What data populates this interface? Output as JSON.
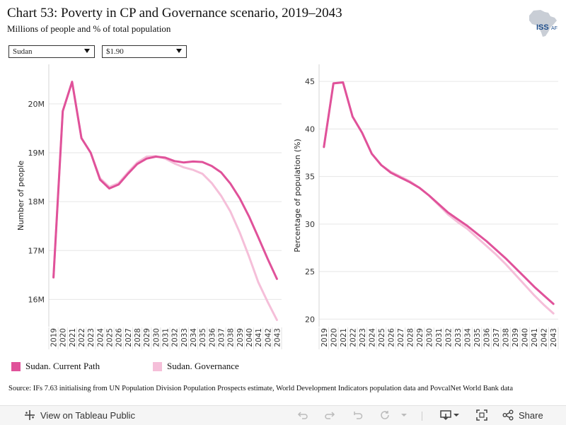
{
  "header": {
    "title": "Chart 53: Poverty in CP and Governance scenario, 2019–2043",
    "subtitle": "Millions of people and % of total population",
    "logo_text": "ISS",
    "logo_suffix": "AF"
  },
  "filters": {
    "country": "Sudan",
    "poverty_line": "$1.90"
  },
  "colors": {
    "current_path": "#e0529a",
    "governance": "#f5bfd9",
    "grid": "#e6e6e6"
  },
  "legend": [
    {
      "label": "Sudan. Current Path",
      "color": "#e0529a"
    },
    {
      "label": "Sudan. Governance",
      "color": "#f5bfd9"
    }
  ],
  "source": "Source: IFs 7.63 initialising from UN Population Division Population Prospects estimate, World Development Indicators population data and PovcalNet World Bank data",
  "toolbar": {
    "view_label": "View on Tableau Public",
    "share_label": "Share"
  },
  "chart_data": [
    {
      "type": "line",
      "title": "",
      "xlabel": "",
      "ylabel": "Number of people",
      "x": [
        2019,
        2020,
        2021,
        2022,
        2023,
        2024,
        2025,
        2026,
        2027,
        2028,
        2029,
        2030,
        2031,
        2032,
        2033,
        2034,
        2035,
        2036,
        2037,
        2038,
        2039,
        2040,
        2041,
        2042,
        2043
      ],
      "yticks": [
        16,
        17,
        18,
        19,
        20
      ],
      "ytick_labels": [
        "16M",
        "17M",
        "18M",
        "19M",
        "20M"
      ],
      "ylim": [
        15.5,
        20.75
      ],
      "grid": true,
      "series": [
        {
          "name": "Sudan. Current Path",
          "values": [
            16.45,
            19.85,
            20.45,
            19.3,
            19.0,
            18.45,
            18.27,
            18.35,
            18.57,
            18.77,
            18.88,
            18.92,
            18.9,
            18.83,
            18.8,
            18.82,
            18.81,
            18.73,
            18.6,
            18.37,
            18.07,
            17.7,
            17.27,
            16.83,
            16.42
          ]
        },
        {
          "name": "Sudan. Governance",
          "values": [
            16.45,
            19.85,
            20.45,
            19.3,
            19.0,
            18.48,
            18.3,
            18.38,
            18.6,
            18.8,
            18.92,
            18.93,
            18.88,
            18.78,
            18.7,
            18.65,
            18.57,
            18.38,
            18.12,
            17.8,
            17.37,
            16.88,
            16.35,
            15.95,
            15.58
          ]
        }
      ]
    },
    {
      "type": "line",
      "title": "",
      "xlabel": "",
      "ylabel": "Percentage of population (%)",
      "x": [
        2019,
        2020,
        2021,
        2022,
        2023,
        2024,
        2025,
        2026,
        2027,
        2028,
        2029,
        2030,
        2031,
        2032,
        2033,
        2034,
        2035,
        2036,
        2037,
        2038,
        2039,
        2040,
        2041,
        2042,
        2043
      ],
      "yticks": [
        20,
        25,
        30,
        35,
        40,
        45
      ],
      "ytick_labels": [
        "20",
        "25",
        "30",
        "35",
        "40",
        "45"
      ],
      "ylim": [
        19.5,
        46.5
      ],
      "grid": true,
      "series": [
        {
          "name": "Sudan. Current Path",
          "values": [
            38.1,
            44.8,
            44.9,
            41.3,
            39.6,
            37.4,
            36.2,
            35.4,
            34.9,
            34.4,
            33.8,
            33.0,
            32.1,
            31.2,
            30.5,
            29.8,
            29.0,
            28.2,
            27.3,
            26.4,
            25.4,
            24.4,
            23.4,
            22.5,
            21.6
          ]
        },
        {
          "name": "Sudan. Governance",
          "values": [
            38.1,
            44.8,
            44.9,
            41.3,
            39.6,
            37.4,
            36.2,
            35.5,
            35.0,
            34.5,
            33.8,
            33.0,
            32.0,
            31.0,
            30.2,
            29.5,
            28.6,
            27.7,
            26.8,
            25.8,
            24.7,
            23.6,
            22.5,
            21.5,
            20.6
          ]
        }
      ]
    }
  ]
}
